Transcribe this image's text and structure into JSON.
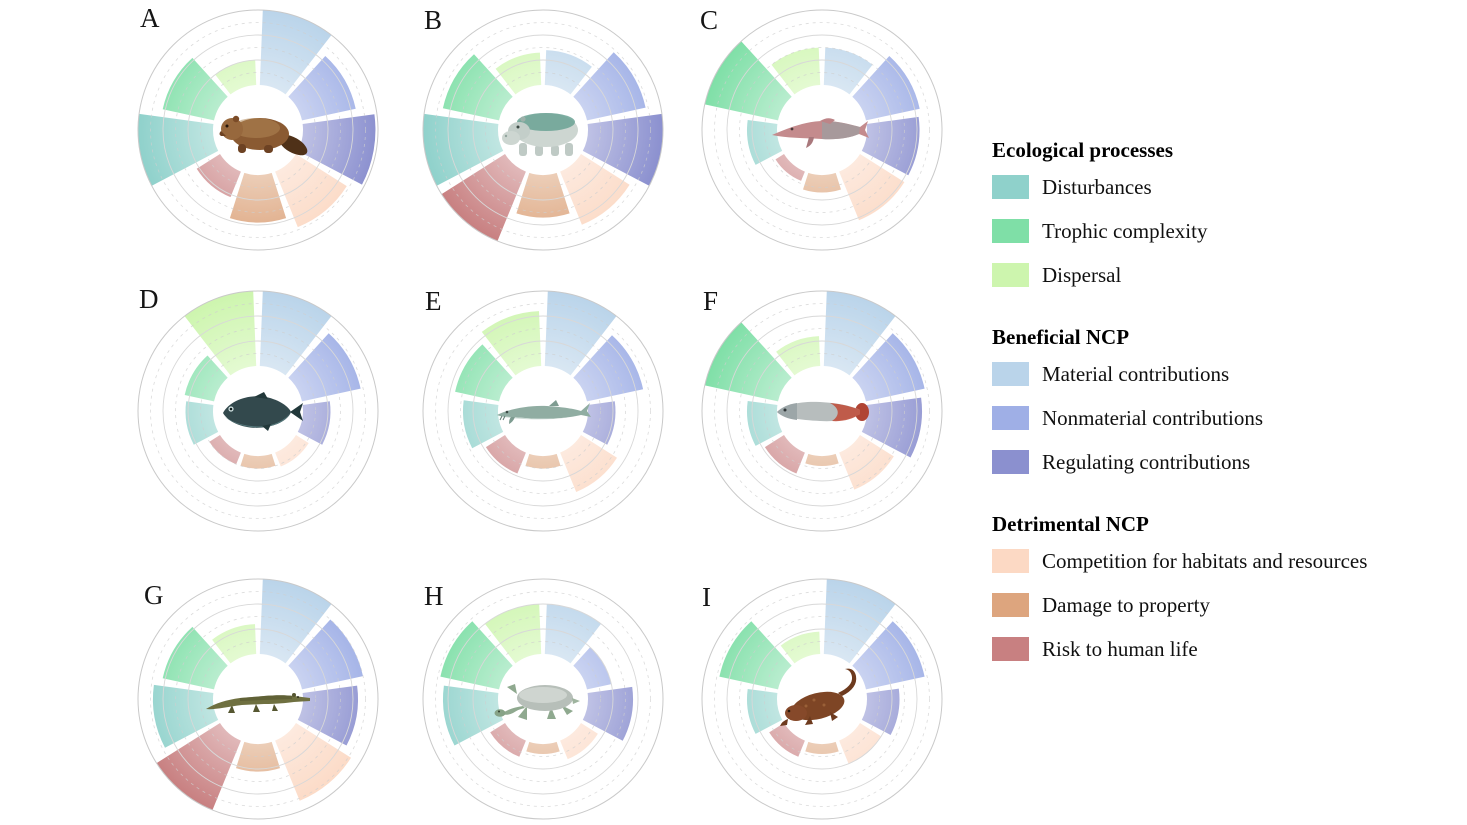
{
  "legend": {
    "groups": [
      {
        "title": "Ecological processes",
        "items": [
          {
            "label": "Disturbances",
            "color": "#8fd1cb"
          },
          {
            "label": "Trophic complexity",
            "color": "#7fdfa7"
          },
          {
            "label": "Dispersal",
            "color": "#cdf5ae"
          }
        ]
      },
      {
        "title": "Beneficial NCP",
        "items": [
          {
            "label": "Material contributions",
            "color": "#bad4ea"
          },
          {
            "label": "Nonmaterial contributions",
            "color": "#9fafe6"
          },
          {
            "label": "Regulating contributions",
            "color": "#8b90cf"
          }
        ]
      },
      {
        "title": "Detrimental NCP",
        "items": [
          {
            "label": "Competition for habitats and resources",
            "color": "#fcd9c4"
          },
          {
            "label": "Damage to property",
            "color": "#dda57e"
          },
          {
            "label": "Risk to human life",
            "color": "#c88081"
          }
        ]
      }
    ]
  },
  "chart_data": {
    "type": "radial-bar-small-multiples",
    "layout": {
      "grid": "3x3",
      "legend_position": "right",
      "wedge_span_deg": 40,
      "start": "12-o'clock, clockwise"
    },
    "scale": {
      "min": 0,
      "max": 3,
      "solid_rings": [
        1,
        2,
        3
      ],
      "dashed_rings": [
        0.5,
        1.5,
        2.5
      ],
      "hole_radius_px": 45,
      "outer_radius_px": 120,
      "note": "values estimated from wedge radii"
    },
    "categories": [
      {
        "key": "material",
        "label": "Material contributions",
        "group": "Beneficial NCP",
        "color": "#bad4ea"
      },
      {
        "key": "nonmaterial",
        "label": "Nonmaterial contributions",
        "group": "Beneficial NCP",
        "color": "#9fafe6"
      },
      {
        "key": "regulating",
        "label": "Regulating contributions",
        "group": "Beneficial NCP",
        "color": "#8b90cf"
      },
      {
        "key": "competition",
        "label": "Competition for habitats and resources",
        "group": "Detrimental NCP",
        "color": "#fcd9c4"
      },
      {
        "key": "damage",
        "label": "Damage to property",
        "group": "Detrimental NCP",
        "color": "#dda57e"
      },
      {
        "key": "risk",
        "label": "Risk to human life",
        "group": "Detrimental NCP",
        "color": "#c88081"
      },
      {
        "key": "disturbances",
        "label": "Disturbances",
        "group": "Ecological processes",
        "color": "#8fd1cb"
      },
      {
        "key": "trophic",
        "label": "Trophic complexity",
        "group": "Ecological processes",
        "color": "#7fdfa7"
      },
      {
        "key": "dispersal",
        "label": "Dispersal",
        "group": "Ecological processes",
        "color": "#cdf5ae"
      }
    ],
    "panels": [
      {
        "label": "A",
        "animal": "beaver",
        "values": {
          "material": 3.0,
          "nonmaterial": 2.2,
          "regulating": 2.9,
          "competition": 2.4,
          "damage": 1.9,
          "risk": 1.1,
          "disturbances": 3.0,
          "trophic": 2.1,
          "dispersal": 1.0
        }
      },
      {
        "label": "B",
        "animal": "hippopotamus",
        "values": {
          "material": 1.4,
          "nonmaterial": 2.4,
          "regulating": 3.0,
          "competition": 2.3,
          "damage": 1.7,
          "risk": 3.0,
          "disturbances": 3.0,
          "trophic": 2.3,
          "dispersal": 1.3
        }
      },
      {
        "label": "C",
        "animal": "river-dolphin",
        "values": {
          "material": 1.5,
          "nonmaterial": 2.2,
          "regulating": 2.1,
          "competition": 2.1,
          "damage": 0.7,
          "risk": 0.4,
          "disturbances": 1.2,
          "trophic": 3.0,
          "dispersal": 1.5
        }
      },
      {
        "label": "D",
        "animal": "freshwater-fish",
        "values": {
          "material": 3.0,
          "nonmaterial": 2.4,
          "regulating": 1.1,
          "competition": 0.6,
          "damage": 0.5,
          "risk": 0.5,
          "disturbances": 1.1,
          "trophic": 1.2,
          "dispersal": 3.0
        }
      },
      {
        "label": "E",
        "animal": "sturgeon",
        "values": {
          "material": 3.0,
          "nonmaterial": 2.3,
          "regulating": 1.1,
          "competition": 1.7,
          "damage": 0.5,
          "risk": 0.9,
          "disturbances": 1.4,
          "trophic": 1.8,
          "dispersal": 2.2
        }
      },
      {
        "label": "F",
        "animal": "arapaima",
        "values": {
          "material": 3.0,
          "nonmaterial": 2.4,
          "regulating": 2.2,
          "competition": 1.6,
          "damage": 0.4,
          "risk": 0.9,
          "disturbances": 1.2,
          "trophic": 3.0,
          "dispersal": 1.2
        }
      },
      {
        "label": "G",
        "animal": "crocodile",
        "values": {
          "material": 3.0,
          "nonmaterial": 2.5,
          "regulating": 2.2,
          "competition": 2.6,
          "damage": 1.1,
          "risk": 3.0,
          "disturbances": 2.4,
          "trophic": 2.1,
          "dispersal": 1.2
        }
      },
      {
        "label": "H",
        "animal": "softshell-turtle",
        "values": {
          "material": 2.0,
          "nonmaterial": 1.0,
          "regulating": 1.8,
          "competition": 0.8,
          "damage": 0.4,
          "risk": 0.7,
          "disturbances": 2.2,
          "trophic": 2.4,
          "dispersal": 2.0
        }
      },
      {
        "label": "I",
        "animal": "giant-salamander",
        "values": {
          "material": 3.0,
          "nonmaterial": 2.4,
          "regulating": 1.3,
          "competition": 1.0,
          "damage": 0.4,
          "risk": 0.7,
          "disturbances": 1.2,
          "trophic": 2.4,
          "dispersal": 0.9
        }
      }
    ]
  }
}
